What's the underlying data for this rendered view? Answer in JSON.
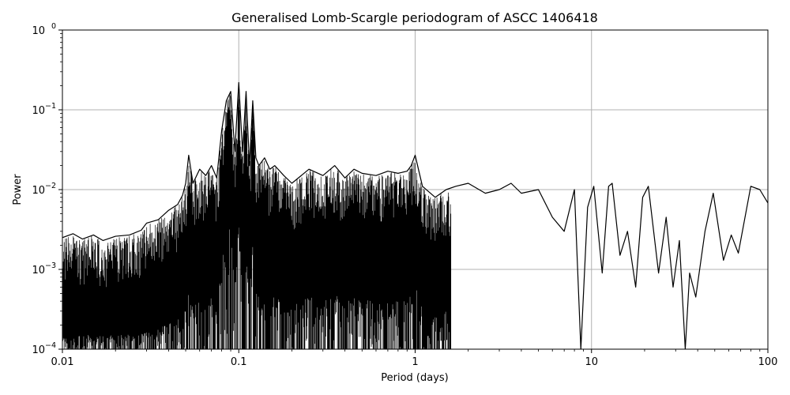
{
  "chart_data": {
    "type": "line",
    "title": "Generalised Lomb-Scargle periodogram of ASCC 1406418",
    "xlabel": "Period (days)",
    "ylabel": "Power",
    "xscale": "log",
    "yscale": "log",
    "xlim": [
      0.01,
      100
    ],
    "ylim": [
      0.0001,
      1
    ],
    "grid": "major",
    "line_color": "#000000",
    "grid_color": "#b0b0b0",
    "x_ticks": [
      {
        "value": 0.01,
        "label": "0.01"
      },
      {
        "value": 0.1,
        "label": "0.1"
      },
      {
        "value": 1,
        "label": "1"
      },
      {
        "value": 10,
        "label": "10"
      },
      {
        "value": 100,
        "label": "100"
      }
    ],
    "y_ticks": [
      {
        "value": 0.0001,
        "base": "10",
        "exp": "−4"
      },
      {
        "value": 0.001,
        "base": "10",
        "exp": "−3"
      },
      {
        "value": 0.01,
        "base": "10",
        "exp": "−2"
      },
      {
        "value": 0.1,
        "base": "10",
        "exp": "−1"
      },
      {
        "value": 1,
        "base": "10",
        "exp": "0"
      }
    ],
    "series": [
      {
        "points": [
          [
            0.01,
            0.0025
          ],
          [
            0.0115,
            0.0028
          ],
          [
            0.013,
            0.0024
          ],
          [
            0.015,
            0.0027
          ],
          [
            0.017,
            0.0023
          ],
          [
            0.02,
            0.0026
          ],
          [
            0.024,
            0.0027
          ],
          [
            0.028,
            0.0031
          ],
          [
            0.03,
            0.0038
          ],
          [
            0.035,
            0.0042
          ],
          [
            0.04,
            0.0055
          ],
          [
            0.045,
            0.0065
          ],
          [
            0.048,
            0.0085
          ],
          [
            0.05,
            0.012
          ],
          [
            0.052,
            0.027
          ],
          [
            0.055,
            0.012
          ],
          [
            0.06,
            0.018
          ],
          [
            0.065,
            0.015
          ],
          [
            0.07,
            0.02
          ],
          [
            0.075,
            0.014
          ],
          [
            0.08,
            0.055
          ],
          [
            0.085,
            0.13
          ],
          [
            0.09,
            0.17
          ],
          [
            0.095,
            0.03
          ],
          [
            0.1,
            0.22
          ],
          [
            0.105,
            0.03
          ],
          [
            0.11,
            0.17
          ],
          [
            0.115,
            0.02
          ],
          [
            0.12,
            0.13
          ],
          [
            0.125,
            0.025
          ],
          [
            0.13,
            0.02
          ],
          [
            0.14,
            0.025
          ],
          [
            0.15,
            0.018
          ],
          [
            0.16,
            0.02
          ],
          [
            0.18,
            0.015
          ],
          [
            0.2,
            0.012
          ],
          [
            0.25,
            0.018
          ],
          [
            0.3,
            0.015
          ],
          [
            0.35,
            0.02
          ],
          [
            0.4,
            0.014
          ],
          [
            0.45,
            0.018
          ],
          [
            0.5,
            0.016
          ],
          [
            0.6,
            0.015
          ],
          [
            0.7,
            0.017
          ],
          [
            0.8,
            0.016
          ],
          [
            0.9,
            0.017
          ],
          [
            0.95,
            0.02
          ],
          [
            1.0,
            0.027
          ],
          [
            1.1,
            0.011
          ],
          [
            1.3,
            0.008
          ],
          [
            1.5,
            0.01
          ],
          [
            1.7,
            0.011
          ],
          [
            2.0,
            0.012
          ],
          [
            2.5,
            0.009
          ],
          [
            3.0,
            0.01
          ],
          [
            3.5,
            0.012
          ],
          [
            4.0,
            0.009
          ],
          [
            5.0,
            0.01
          ],
          [
            6.0,
            0.0045
          ],
          [
            7.0,
            0.003
          ],
          [
            8.0,
            0.01
          ],
          [
            8.7,
            0.0001
          ],
          [
            9.5,
            0.006
          ],
          [
            10.3,
            0.011
          ],
          [
            11.5,
            0.0009
          ],
          [
            12.5,
            0.011
          ],
          [
            13.1,
            0.012
          ],
          [
            14.5,
            0.0015
          ],
          [
            16.0,
            0.003
          ],
          [
            17.8,
            0.0006
          ],
          [
            19.5,
            0.008
          ],
          [
            21.0,
            0.011
          ],
          [
            24.0,
            0.0009
          ],
          [
            26.5,
            0.0045
          ],
          [
            29.0,
            0.0006
          ],
          [
            31.5,
            0.0023
          ],
          [
            34.0,
            0.0001
          ],
          [
            36.0,
            0.0009
          ],
          [
            39.0,
            0.00045
          ],
          [
            44.0,
            0.003
          ],
          [
            49.0,
            0.009
          ],
          [
            56.0,
            0.0013
          ],
          [
            62.0,
            0.0027
          ],
          [
            68.0,
            0.0016
          ],
          [
            80.0,
            0.011
          ],
          [
            90.0,
            0.01
          ],
          [
            100.0,
            0.0068
          ]
        ]
      }
    ]
  }
}
